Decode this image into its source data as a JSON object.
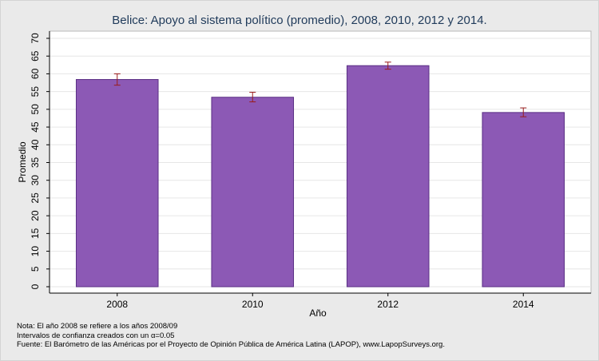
{
  "chart_data": {
    "type": "bar",
    "title": "Belice: Apoyo al sistema político (promedio), 2008, 2010, 2012 y 2014.",
    "xlabel": "Año",
    "ylabel": "Promedio",
    "categories": [
      "2008",
      "2010",
      "2012",
      "2014"
    ],
    "values": [
      58.4,
      53.4,
      62.3,
      49.1
    ],
    "ci_low": [
      56.8,
      52.1,
      61.3,
      47.9
    ],
    "ci_high": [
      60.0,
      54.8,
      63.3,
      50.4
    ],
    "ylim": [
      0,
      70
    ],
    "yticks": [
      0,
      5,
      10,
      15,
      20,
      25,
      30,
      35,
      40,
      45,
      50,
      55,
      60,
      65,
      70
    ],
    "grid": true,
    "legend": "none",
    "colors": {
      "bar": "#8c59b5",
      "bar_border": "#5a2f84",
      "error_bar": "#9a1c1c",
      "plot_background": "#ffffff",
      "figure_background": "#eaeaea",
      "title": "#1f3a5a"
    }
  },
  "notes": {
    "line1": "Nota: El año 2008 se refiere a los años 2008/09",
    "line2": "Intervalos de confianza creados con un α=0.05",
    "line3": "Fuente: El Barómetro de las Américas por el Proyecto de Opinión Pública de América Latina (LAPOP), www.LapopSurveys.org."
  }
}
